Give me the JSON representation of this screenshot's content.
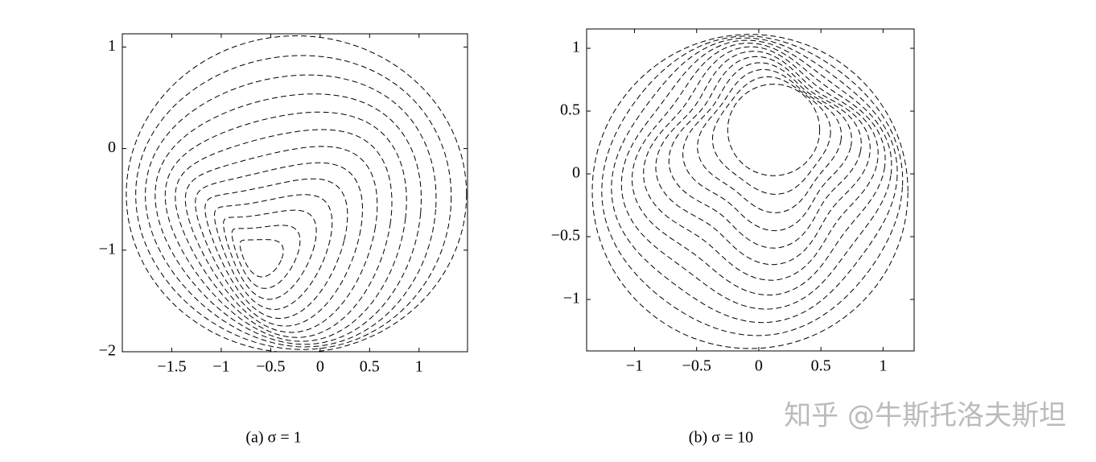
{
  "chart_data": [
    {
      "type": "contour",
      "caption": "(a) σ = 1",
      "xlim": [
        -2,
        1.49
      ],
      "ylim": [
        -2,
        1.13
      ],
      "xticks": [
        {
          "value": -1.5,
          "label": "−1.5"
        },
        {
          "value": -1,
          "label": "−1"
        },
        {
          "value": -0.5,
          "label": "−0.5"
        },
        0,
        0.5,
        1
      ],
      "yticks": [
        {
          "value": -2,
          "label": "−2"
        },
        {
          "value": -1,
          "label": "−1"
        },
        0,
        1
      ]
    },
    {
      "type": "contour",
      "caption": "(b) σ = 10",
      "xlim": [
        -1.385,
        1.25
      ],
      "ylim": [
        -1.41,
        1.154
      ],
      "xticks": [
        {
          "value": -1,
          "label": "−1"
        },
        {
          "value": -0.5,
          "label": "−0.5"
        },
        0,
        0.5,
        1
      ],
      "yticks": [
        {
          "value": -1,
          "label": "−1"
        },
        {
          "value": -0.5,
          "label": "−0.5"
        },
        0,
        0.5,
        1
      ]
    }
  ],
  "watermark": "知乎 @牛斯托洛夫斯坦"
}
